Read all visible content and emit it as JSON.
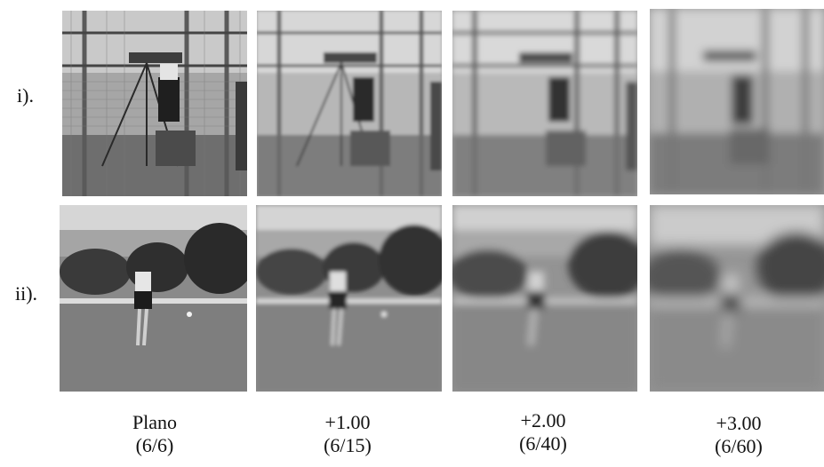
{
  "rows": {
    "row1_label": "i).",
    "row2_label": "ii)."
  },
  "columns": [
    {
      "lens": "Plano",
      "acuity": "(6/6)",
      "blur_level": 0
    },
    {
      "lens": "+1.00",
      "acuity": "(6/15)",
      "blur_level": 1
    },
    {
      "lens": "+2.00",
      "acuity": "(6/40)",
      "blur_level": 2
    },
    {
      "lens": "+3.00",
      "acuity": "(6/60)",
      "blur_level": 3
    }
  ]
}
